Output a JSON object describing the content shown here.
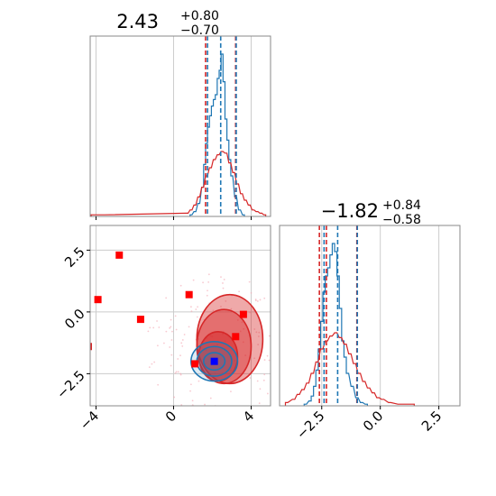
{
  "chart_data": [
    {
      "type": "histogram",
      "panel": "top-left",
      "title_value": "2.43",
      "title_plus": "+0.80",
      "title_minus": "−0.70",
      "xlim": [
        -4.3,
        5.0
      ],
      "grid": true,
      "quantiles": {
        "blue": [
          1.75,
          2.43,
          3.23
        ],
        "red": [
          1.65,
          3.2
        ]
      },
      "series": [
        {
          "color": "#1f77b4",
          "bins": [
            {
              "x": 0.9,
              "v": 0.01
            },
            {
              "x": 1.1,
              "v": 0.03
            },
            {
              "x": 1.3,
              "v": 0.08
            },
            {
              "x": 1.5,
              "v": 0.18
            },
            {
              "x": 1.6,
              "v": 0.32
            },
            {
              "x": 1.7,
              "v": 0.45
            },
            {
              "x": 1.8,
              "v": 0.55
            },
            {
              "x": 1.9,
              "v": 0.62
            },
            {
              "x": 2.0,
              "v": 0.68
            },
            {
              "x": 2.1,
              "v": 0.72
            },
            {
              "x": 2.2,
              "v": 0.75
            },
            {
              "x": 2.3,
              "v": 0.85
            },
            {
              "x": 2.4,
              "v": 0.9
            },
            {
              "x": 2.5,
              "v": 1.0
            },
            {
              "x": 2.6,
              "v": 0.83
            },
            {
              "x": 2.7,
              "v": 0.6
            },
            {
              "x": 2.8,
              "v": 0.47
            },
            {
              "x": 2.9,
              "v": 0.35
            },
            {
              "x": 3.0,
              "v": 0.25
            },
            {
              "x": 3.2,
              "v": 0.12
            },
            {
              "x": 3.4,
              "v": 0.04
            },
            {
              "x": 3.6,
              "v": 0.01
            }
          ]
        },
        {
          "color": "#d62728",
          "bins": [
            {
              "x": -4.2,
              "v": 0.01
            },
            {
              "x": -3.6,
              "v": 0.01
            },
            {
              "x": 0.7,
              "v": 0.02
            },
            {
              "x": 0.9,
              "v": 0.04
            },
            {
              "x": 1.1,
              "v": 0.07
            },
            {
              "x": 1.3,
              "v": 0.12
            },
            {
              "x": 1.5,
              "v": 0.18
            },
            {
              "x": 1.7,
              "v": 0.25
            },
            {
              "x": 1.9,
              "v": 0.3
            },
            {
              "x": 2.1,
              "v": 0.35
            },
            {
              "x": 2.3,
              "v": 0.38
            },
            {
              "x": 2.5,
              "v": 0.4
            },
            {
              "x": 2.7,
              "v": 0.39
            },
            {
              "x": 2.9,
              "v": 0.33
            },
            {
              "x": 3.1,
              "v": 0.27
            },
            {
              "x": 3.3,
              "v": 0.2
            },
            {
              "x": 3.5,
              "v": 0.14
            },
            {
              "x": 3.7,
              "v": 0.1
            },
            {
              "x": 3.9,
              "v": 0.07
            },
            {
              "x": 4.1,
              "v": 0.04
            },
            {
              "x": 4.3,
              "v": 0.03
            },
            {
              "x": 4.5,
              "v": 0.02
            },
            {
              "x": 4.7,
              "v": 0.01
            }
          ]
        }
      ]
    },
    {
      "type": "histogram",
      "panel": "bottom-right",
      "title_value": "−1.82",
      "title_plus": "+0.84",
      "title_minus": "−0.58",
      "xlim": [
        -4.3,
        3.4
      ],
      "xticks": [
        "−2.5",
        "0.0",
        "2.5"
      ],
      "xtick_values": [
        -2.5,
        0.0,
        2.5
      ],
      "grid": true,
      "quantiles": {
        "blue": [
          -2.4,
          -1.82,
          -0.98
        ],
        "red": [
          -2.6,
          -2.3,
          -1.0
        ]
      },
      "series": [
        {
          "color": "#1f77b4",
          "bins": [
            {
              "x": -3.2,
              "v": 0.01
            },
            {
              "x": -3.0,
              "v": 0.03
            },
            {
              "x": -2.9,
              "v": 0.06
            },
            {
              "x": -2.8,
              "v": 0.12
            },
            {
              "x": -2.7,
              "v": 0.22
            },
            {
              "x": -2.6,
              "v": 0.35
            },
            {
              "x": -2.5,
              "v": 0.52
            },
            {
              "x": -2.4,
              "v": 0.7
            },
            {
              "x": -2.3,
              "v": 0.8
            },
            {
              "x": -2.2,
              "v": 0.85
            },
            {
              "x": -2.1,
              "v": 0.93
            },
            {
              "x": -2.0,
              "v": 1.0
            },
            {
              "x": -1.9,
              "v": 0.95
            },
            {
              "x": -1.8,
              "v": 0.8
            },
            {
              "x": -1.7,
              "v": 0.6
            },
            {
              "x": -1.6,
              "v": 0.4
            },
            {
              "x": -1.5,
              "v": 0.3
            },
            {
              "x": -1.4,
              "v": 0.2
            },
            {
              "x": -1.2,
              "v": 0.12
            },
            {
              "x": -1.0,
              "v": 0.05
            },
            {
              "x": -0.8,
              "v": 0.02
            },
            {
              "x": -0.6,
              "v": 0.01
            }
          ]
        },
        {
          "color": "#d62728",
          "bins": [
            {
              "x": -4.0,
              "v": 0.02
            },
            {
              "x": -3.7,
              "v": 0.04
            },
            {
              "x": -3.5,
              "v": 0.07
            },
            {
              "x": -3.3,
              "v": 0.1
            },
            {
              "x": -3.1,
              "v": 0.14
            },
            {
              "x": -2.9,
              "v": 0.2
            },
            {
              "x": -2.7,
              "v": 0.27
            },
            {
              "x": -2.5,
              "v": 0.35
            },
            {
              "x": -2.3,
              "v": 0.4
            },
            {
              "x": -2.1,
              "v": 0.43
            },
            {
              "x": -1.9,
              "v": 0.45
            },
            {
              "x": -1.7,
              "v": 0.42
            },
            {
              "x": -1.5,
              "v": 0.38
            },
            {
              "x": -1.3,
              "v": 0.32
            },
            {
              "x": -1.1,
              "v": 0.26
            },
            {
              "x": -0.9,
              "v": 0.2
            },
            {
              "x": -0.7,
              "v": 0.15
            },
            {
              "x": -0.5,
              "v": 0.11
            },
            {
              "x": -0.3,
              "v": 0.08
            },
            {
              "x": -0.1,
              "v": 0.05
            },
            {
              "x": 0.1,
              "v": 0.04
            },
            {
              "x": 0.4,
              "v": 0.02
            },
            {
              "x": 0.8,
              "v": 0.01
            },
            {
              "x": 1.4,
              "v": 0.01
            }
          ]
        }
      ]
    },
    {
      "type": "scatter",
      "panel": "bottom-left",
      "xlim": [
        -4.3,
        5.0
      ],
      "ylim": [
        -3.8,
        3.5
      ],
      "xticks": [
        "−4",
        "0",
        "4"
      ],
      "xtick_values": [
        -4,
        0,
        4
      ],
      "yticks": [
        "−2.5",
        "0.0",
        "2.5"
      ],
      "ytick_values": [
        -2.5,
        0.0,
        2.5
      ],
      "grid": true,
      "red_markers": [
        {
          "x": -2.8,
          "y": 2.3
        },
        {
          "x": -3.9,
          "y": 0.5
        },
        {
          "x": -1.7,
          "y": -0.3
        },
        {
          "x": 0.8,
          "y": 0.7
        },
        {
          "x": 3.6,
          "y": -0.1
        },
        {
          "x": 3.2,
          "y": -1.0
        },
        {
          "x": 1.1,
          "y": -2.1
        }
      ],
      "blue_markers": [
        {
          "x": 2.1,
          "y": -2.0
        }
      ],
      "red_contours": [
        {
          "cx": 2.9,
          "cy": -1.1,
          "rx": 1.7,
          "ry": 1.8,
          "opacity": 0.4
        },
        {
          "cx": 2.6,
          "cy": -1.4,
          "rx": 1.4,
          "ry": 1.5,
          "opacity": 0.45
        },
        {
          "cx": 2.3,
          "cy": -1.8,
          "rx": 1.0,
          "ry": 1.0,
          "opacity": 0.55
        }
      ],
      "blue_contours": [
        {
          "cx": 2.1,
          "cy": -2.0,
          "rx": 1.2,
          "ry": 0.8
        },
        {
          "cx": 2.1,
          "cy": -2.0,
          "rx": 0.9,
          "ry": 0.6
        },
        {
          "cx": 2.1,
          "cy": -2.0,
          "rx": 0.55,
          "ry": 0.35
        }
      ],
      "edge_point": {
        "x": -4.3,
        "y": -1.4
      },
      "colors": {
        "red": "#d62728",
        "red_marker": "#ff0000",
        "blue": "#1f77b4",
        "blue_marker": "#0000ff"
      }
    }
  ]
}
